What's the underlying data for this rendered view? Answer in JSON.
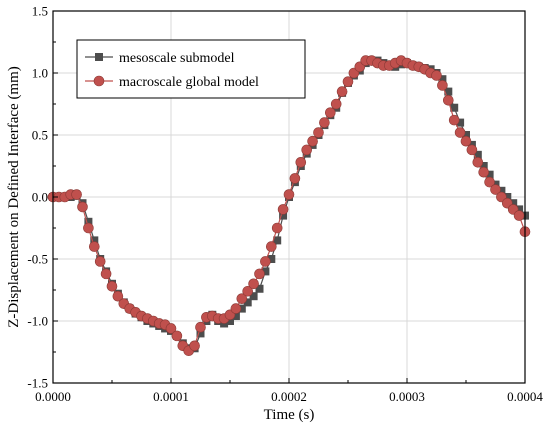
{
  "chart_data": {
    "type": "line",
    "title": "",
    "xlabel": "Time (s)",
    "ylabel": "Z-Displacement on Defined Interface (mm)",
    "xlim": [
      0.0,
      0.0004
    ],
    "ylim": [
      -1.5,
      1.5
    ],
    "xticks": [
      "0.0000",
      "0.0001",
      "0.0002",
      "0.0003",
      "0.0004"
    ],
    "yticks": [
      "-1.5",
      "-1.0",
      "-0.5",
      "0.0",
      "0.5",
      "1.0",
      "1.5"
    ],
    "grid": true,
    "legend_position": "top-left",
    "series": [
      {
        "name": "mesoscale submodel",
        "color": "#4d4d4d",
        "marker": "square",
        "x": [
          0.0,
          5e-06,
          1e-05,
          1.5e-05,
          2e-05,
          2.5e-05,
          3e-05,
          3.5e-05,
          4e-05,
          4.5e-05,
          5e-05,
          5.5e-05,
          6e-05,
          6.5e-05,
          7e-05,
          7.5e-05,
          8e-05,
          8.5e-05,
          9e-05,
          9.5e-05,
          0.0001,
          0.000105,
          0.00011,
          0.000115,
          0.00012,
          0.000125,
          0.00013,
          0.000135,
          0.00014,
          0.000145,
          0.00015,
          0.000155,
          0.00016,
          0.000165,
          0.00017,
          0.000175,
          0.00018,
          0.000185,
          0.00019,
          0.000195,
          0.0002,
          0.000205,
          0.00021,
          0.000215,
          0.00022,
          0.000225,
          0.00023,
          0.000235,
          0.00024,
          0.000245,
          0.00025,
          0.000255,
          0.00026,
          0.000265,
          0.00027,
          0.000275,
          0.00028,
          0.000285,
          0.00029,
          0.000295,
          0.0003,
          0.000305,
          0.00031,
          0.000315,
          0.00032,
          0.000325,
          0.00033,
          0.000335,
          0.00034,
          0.000345,
          0.00035,
          0.000355,
          0.00036,
          0.000365,
          0.00037,
          0.000375,
          0.00038,
          0.000385,
          0.00039,
          0.000395,
          0.0004
        ],
        "y": [
          0.0,
          0.0,
          0.0,
          0.0,
          0.01,
          -0.05,
          -0.2,
          -0.35,
          -0.5,
          -0.6,
          -0.7,
          -0.78,
          -0.85,
          -0.9,
          -0.94,
          -0.97,
          -1.0,
          -1.02,
          -1.04,
          -1.06,
          -1.08,
          -1.12,
          -1.18,
          -1.22,
          -1.22,
          -1.1,
          -1.0,
          -0.95,
          -1.0,
          -1.02,
          -1.0,
          -0.96,
          -0.9,
          -0.85,
          -0.8,
          -0.74,
          -0.6,
          -0.5,
          -0.35,
          -0.15,
          0.0,
          0.12,
          0.25,
          0.35,
          0.42,
          0.5,
          0.58,
          0.66,
          0.72,
          0.84,
          0.92,
          0.98,
          1.02,
          1.08,
          1.1,
          1.1,
          1.08,
          1.06,
          1.05,
          1.07,
          1.08,
          1.06,
          1.05,
          1.04,
          1.03,
          1.0,
          0.95,
          0.85,
          0.72,
          0.6,
          0.5,
          0.42,
          0.34,
          0.25,
          0.18,
          0.1,
          0.05,
          0.0,
          -0.05,
          -0.1,
          -0.15
        ]
      },
      {
        "name": "macroscale global model",
        "color": "#c0504d",
        "marker": "circle",
        "x": [
          0.0,
          5e-06,
          1e-05,
          1.5e-05,
          2e-05,
          2.5e-05,
          3e-05,
          3.5e-05,
          4e-05,
          4.5e-05,
          5e-05,
          5.5e-05,
          6e-05,
          6.5e-05,
          7e-05,
          7.5e-05,
          8e-05,
          8.5e-05,
          9e-05,
          9.5e-05,
          0.0001,
          0.000105,
          0.00011,
          0.000115,
          0.00012,
          0.000125,
          0.00013,
          0.000135,
          0.00014,
          0.000145,
          0.00015,
          0.000155,
          0.00016,
          0.000165,
          0.00017,
          0.000175,
          0.00018,
          0.000185,
          0.00019,
          0.000195,
          0.0002,
          0.000205,
          0.00021,
          0.000215,
          0.00022,
          0.000225,
          0.00023,
          0.000235,
          0.00024,
          0.000245,
          0.00025,
          0.000255,
          0.00026,
          0.000265,
          0.00027,
          0.000275,
          0.00028,
          0.000285,
          0.00029,
          0.000295,
          0.0003,
          0.000305,
          0.00031,
          0.000315,
          0.00032,
          0.000325,
          0.00033,
          0.000335,
          0.00034,
          0.000345,
          0.00035,
          0.000355,
          0.00036,
          0.000365,
          0.00037,
          0.000375,
          0.00038,
          0.000385,
          0.00039,
          0.000395,
          0.0004
        ],
        "y": [
          0.0,
          0.0,
          0.0,
          0.02,
          0.02,
          -0.08,
          -0.25,
          -0.4,
          -0.52,
          -0.62,
          -0.72,
          -0.8,
          -0.86,
          -0.9,
          -0.93,
          -0.96,
          -0.98,
          -1.0,
          -1.02,
          -1.03,
          -1.06,
          -1.12,
          -1.2,
          -1.24,
          -1.2,
          -1.05,
          -0.97,
          -0.96,
          -0.98,
          -0.98,
          -0.95,
          -0.9,
          -0.82,
          -0.76,
          -0.7,
          -0.62,
          -0.52,
          -0.4,
          -0.25,
          -0.1,
          0.02,
          0.15,
          0.28,
          0.38,
          0.45,
          0.52,
          0.6,
          0.68,
          0.75,
          0.85,
          0.93,
          1.0,
          1.05,
          1.1,
          1.1,
          1.08,
          1.06,
          1.06,
          1.08,
          1.1,
          1.08,
          1.06,
          1.05,
          1.03,
          1.0,
          0.98,
          0.9,
          0.78,
          0.62,
          0.52,
          0.45,
          0.38,
          0.28,
          0.2,
          0.12,
          0.06,
          0.0,
          -0.05,
          -0.1,
          -0.15,
          -0.28
        ]
      }
    ]
  }
}
